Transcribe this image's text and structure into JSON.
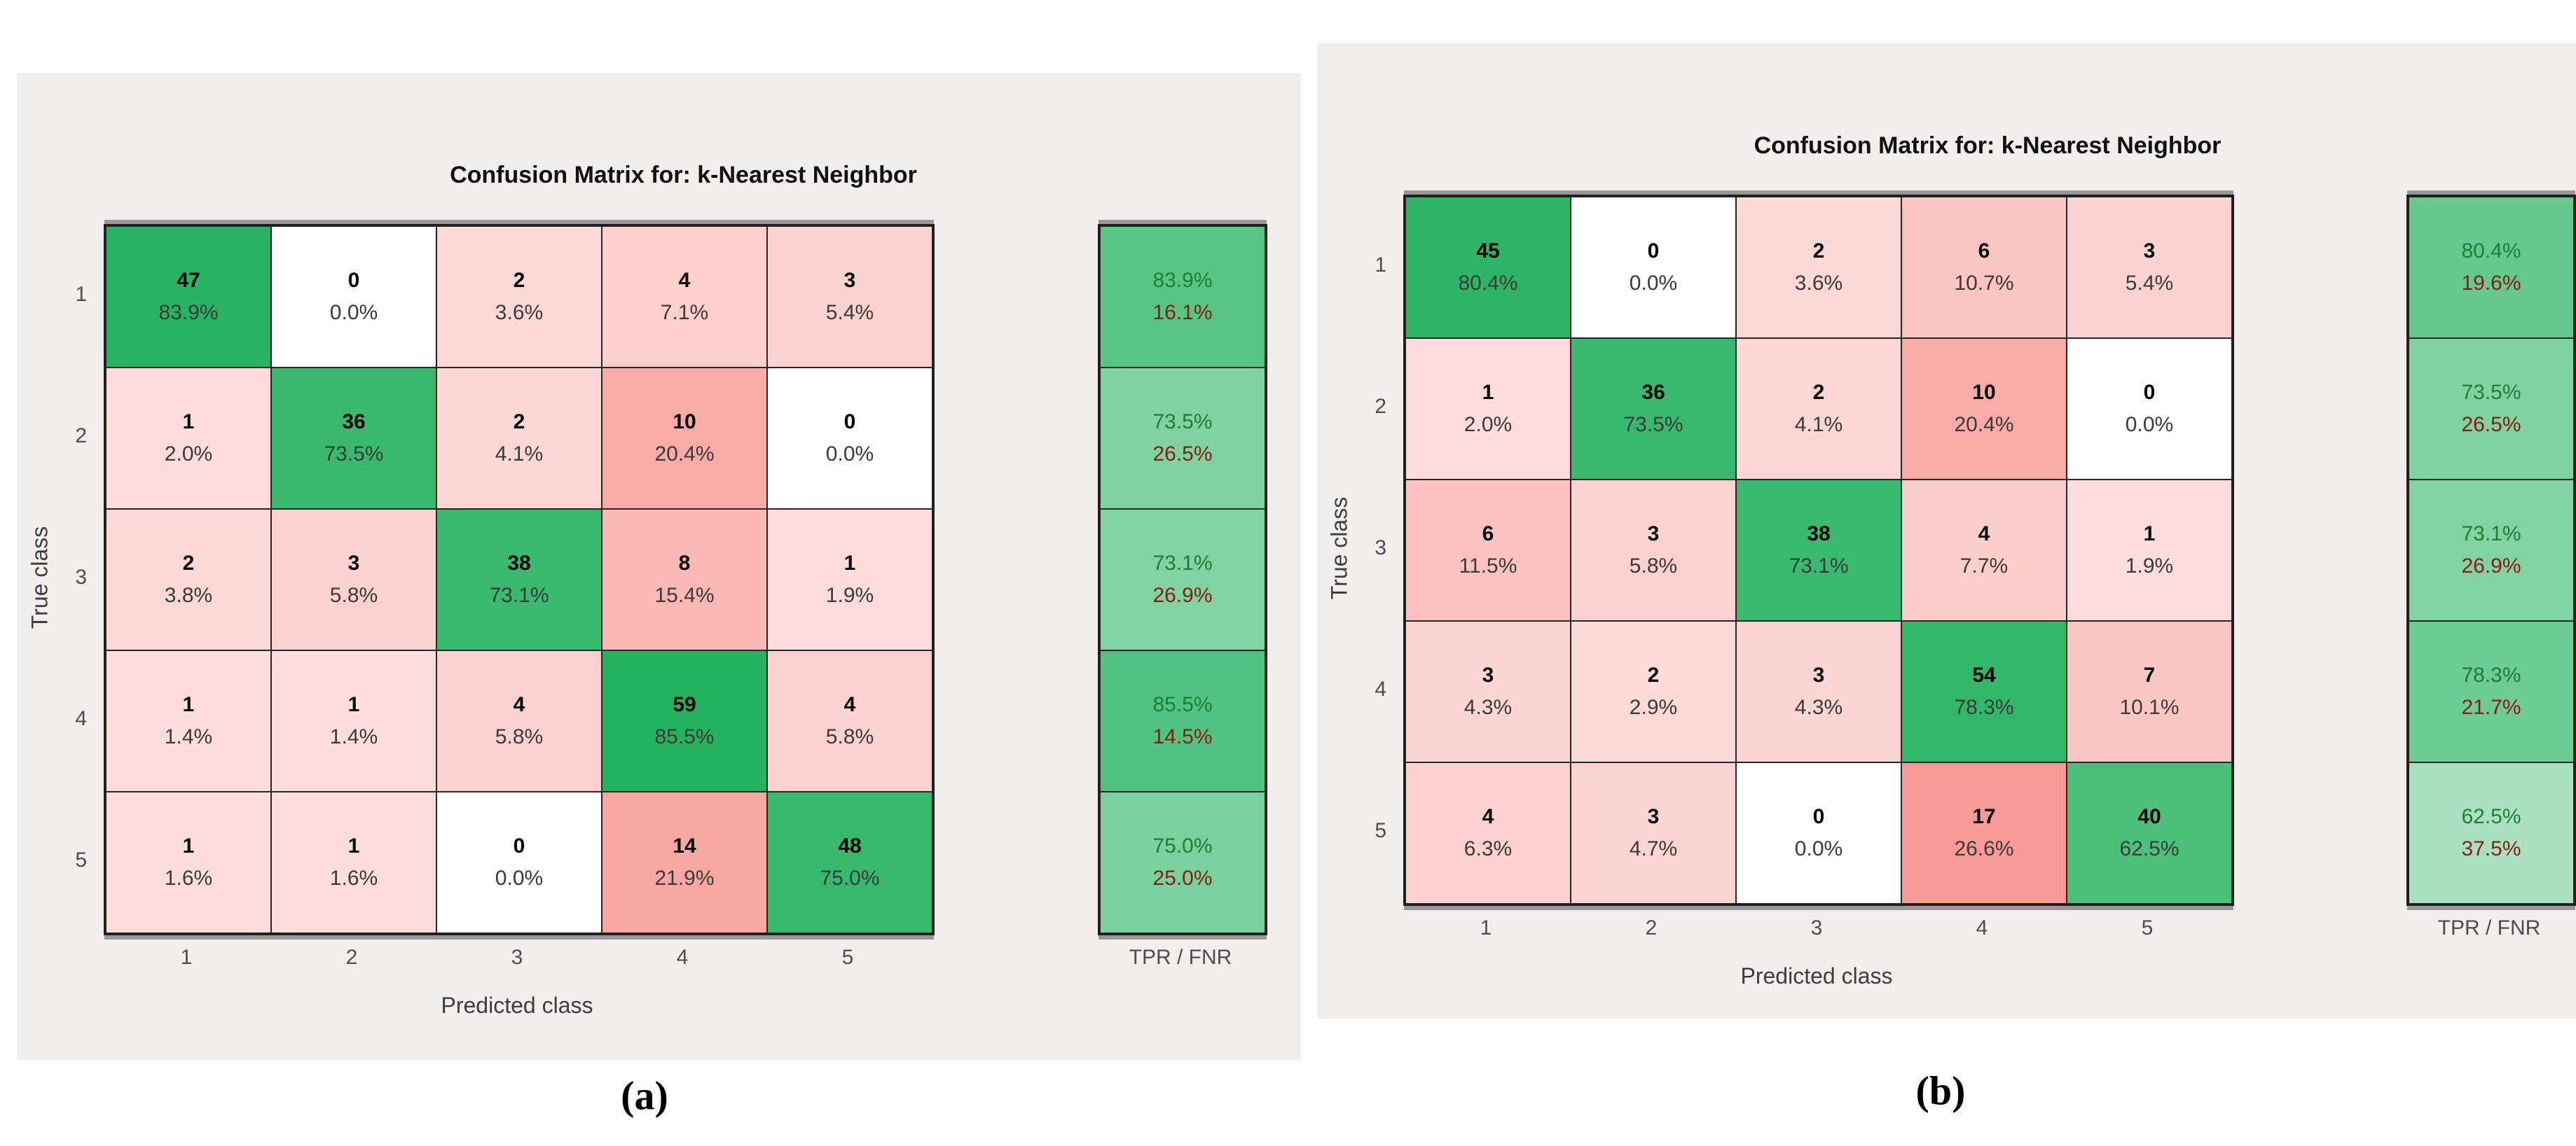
{
  "figure": {
    "panels": [
      {
        "caption": "(a)",
        "title": "Confusion Matrix for: k-Nearest Neighbor",
        "xlabel": "Predicted class",
        "ylabel": "True class",
        "summary_label": "TPR / FNR",
        "class_labels": [
          "1",
          "2",
          "3",
          "4",
          "5"
        ],
        "rows": [
          {
            "cells": [
              {
                "count": "47",
                "pct": "83.9%"
              },
              {
                "count": "0",
                "pct": "0.0%"
              },
              {
                "count": "2",
                "pct": "3.6%"
              },
              {
                "count": "4",
                "pct": "7.1%"
              },
              {
                "count": "3",
                "pct": "5.4%"
              }
            ],
            "tpr": "83.9%",
            "fnr": "16.1%"
          },
          {
            "cells": [
              {
                "count": "1",
                "pct": "2.0%"
              },
              {
                "count": "36",
                "pct": "73.5%"
              },
              {
                "count": "2",
                "pct": "4.1%"
              },
              {
                "count": "10",
                "pct": "20.4%"
              },
              {
                "count": "0",
                "pct": "0.0%"
              }
            ],
            "tpr": "73.5%",
            "fnr": "26.5%"
          },
          {
            "cells": [
              {
                "count": "2",
                "pct": "3.8%"
              },
              {
                "count": "3",
                "pct": "5.8%"
              },
              {
                "count": "38",
                "pct": "73.1%"
              },
              {
                "count": "8",
                "pct": "15.4%"
              },
              {
                "count": "1",
                "pct": "1.9%"
              }
            ],
            "tpr": "73.1%",
            "fnr": "26.9%"
          },
          {
            "cells": [
              {
                "count": "1",
                "pct": "1.4%"
              },
              {
                "count": "1",
                "pct": "1.4%"
              },
              {
                "count": "4",
                "pct": "5.8%"
              },
              {
                "count": "59",
                "pct": "85.5%"
              },
              {
                "count": "4",
                "pct": "5.8%"
              }
            ],
            "tpr": "85.5%",
            "fnr": "14.5%"
          },
          {
            "cells": [
              {
                "count": "1",
                "pct": "1.6%"
              },
              {
                "count": "1",
                "pct": "1.6%"
              },
              {
                "count": "0",
                "pct": "0.0%"
              },
              {
                "count": "14",
                "pct": "21.9%"
              },
              {
                "count": "48",
                "pct": "75.0%"
              }
            ],
            "tpr": "75.0%",
            "fnr": "25.0%"
          }
        ]
      },
      {
        "caption": "(b)",
        "title": "Confusion Matrix for: k-Nearest Neighbor",
        "xlabel": "Predicted class",
        "ylabel": "True class",
        "summary_label": "TPR / FNR",
        "class_labels": [
          "1",
          "2",
          "3",
          "4",
          "5"
        ],
        "rows": [
          {
            "cells": [
              {
                "count": "45",
                "pct": "80.4%"
              },
              {
                "count": "0",
                "pct": "0.0%"
              },
              {
                "count": "2",
                "pct": "3.6%"
              },
              {
                "count": "6",
                "pct": "10.7%"
              },
              {
                "count": "3",
                "pct": "5.4%"
              }
            ],
            "tpr": "80.4%",
            "fnr": "19.6%"
          },
          {
            "cells": [
              {
                "count": "1",
                "pct": "2.0%"
              },
              {
                "count": "36",
                "pct": "73.5%"
              },
              {
                "count": "2",
                "pct": "4.1%"
              },
              {
                "count": "10",
                "pct": "20.4%"
              },
              {
                "count": "0",
                "pct": "0.0%"
              }
            ],
            "tpr": "73.5%",
            "fnr": "26.5%"
          },
          {
            "cells": [
              {
                "count": "6",
                "pct": "11.5%"
              },
              {
                "count": "3",
                "pct": "5.8%"
              },
              {
                "count": "38",
                "pct": "73.1%"
              },
              {
                "count": "4",
                "pct": "7.7%"
              },
              {
                "count": "1",
                "pct": "1.9%"
              }
            ],
            "tpr": "73.1%",
            "fnr": "26.9%"
          },
          {
            "cells": [
              {
                "count": "3",
                "pct": "4.3%"
              },
              {
                "count": "2",
                "pct": "2.9%"
              },
              {
                "count": "3",
                "pct": "4.3%"
              },
              {
                "count": "54",
                "pct": "78.3%"
              },
              {
                "count": "7",
                "pct": "10.1%"
              }
            ],
            "tpr": "78.3%",
            "fnr": "21.7%"
          },
          {
            "cells": [
              {
                "count": "4",
                "pct": "6.3%"
              },
              {
                "count": "3",
                "pct": "4.7%"
              },
              {
                "count": "0",
                "pct": "0.0%"
              },
              {
                "count": "17",
                "pct": "26.6%"
              },
              {
                "count": "40",
                "pct": "62.5%"
              }
            ],
            "tpr": "62.5%",
            "fnr": "37.5%"
          }
        ]
      }
    ],
    "colors": {
      "diag_green": "#23b25e",
      "offdiag_red": "#f4645c",
      "summary_green": "#2cb665",
      "tpr_text": "#1e7e34",
      "fnr_text": "#8a1c12",
      "panel_bg": "#f0efee"
    }
  },
  "chart_data": [
    {
      "type": "heatmap",
      "title": "Confusion Matrix for: k-Nearest Neighbor",
      "caption": "(a)",
      "xlabel": "Predicted class",
      "ylabel": "True class",
      "x_categories": [
        "1",
        "2",
        "3",
        "4",
        "5"
      ],
      "y_categories": [
        "1",
        "2",
        "3",
        "4",
        "5"
      ],
      "counts": [
        [
          47,
          0,
          2,
          4,
          3
        ],
        [
          1,
          36,
          2,
          10,
          0
        ],
        [
          2,
          3,
          38,
          8,
          1
        ],
        [
          1,
          1,
          4,
          59,
          4
        ],
        [
          1,
          1,
          0,
          14,
          48
        ]
      ],
      "row_percentages": [
        [
          83.9,
          0.0,
          3.6,
          7.1,
          5.4
        ],
        [
          2.0,
          73.5,
          4.1,
          20.4,
          0.0
        ],
        [
          3.8,
          5.8,
          73.1,
          15.4,
          1.9
        ],
        [
          1.4,
          1.4,
          5.8,
          85.5,
          5.8
        ],
        [
          1.6,
          1.6,
          0.0,
          21.9,
          75.0
        ]
      ],
      "tpr": [
        83.9,
        73.5,
        73.1,
        85.5,
        75.0
      ],
      "fnr": [
        16.1,
        26.5,
        26.9,
        14.5,
        25.0
      ],
      "summary_label": "TPR / FNR",
      "legend_position": "none",
      "grid": true
    },
    {
      "type": "heatmap",
      "title": "Confusion Matrix for: k-Nearest Neighbor",
      "caption": "(b)",
      "xlabel": "Predicted class",
      "ylabel": "True class",
      "x_categories": [
        "1",
        "2",
        "3",
        "4",
        "5"
      ],
      "y_categories": [
        "1",
        "2",
        "3",
        "4",
        "5"
      ],
      "counts": [
        [
          45,
          0,
          2,
          6,
          3
        ],
        [
          1,
          36,
          2,
          10,
          0
        ],
        [
          6,
          3,
          38,
          4,
          1
        ],
        [
          3,
          2,
          3,
          54,
          7
        ],
        [
          4,
          3,
          0,
          17,
          40
        ]
      ],
      "row_percentages": [
        [
          80.4,
          0.0,
          3.6,
          10.7,
          5.4
        ],
        [
          2.0,
          73.5,
          4.1,
          20.4,
          0.0
        ],
        [
          11.5,
          5.8,
          73.1,
          7.7,
          1.9
        ],
        [
          4.3,
          2.9,
          4.3,
          78.3,
          10.1
        ],
        [
          6.3,
          4.7,
          0.0,
          26.6,
          62.5
        ]
      ],
      "tpr": [
        80.4,
        73.5,
        73.1,
        78.3,
        62.5
      ],
      "fnr": [
        19.6,
        26.5,
        26.9,
        21.7,
        37.5
      ],
      "summary_label": "TPR / FNR",
      "legend_position": "none",
      "grid": true
    }
  ]
}
